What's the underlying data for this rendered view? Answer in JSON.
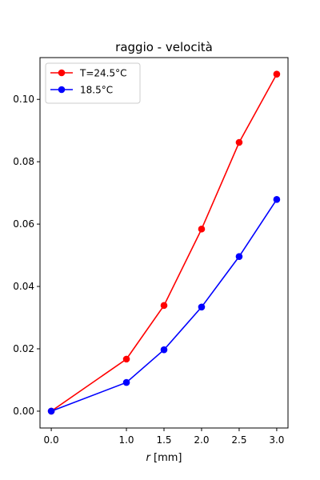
{
  "chart_data": {
    "type": "line",
    "title": "raggio - velocità",
    "xlabel_italic": "r",
    "xlabel_unit": " [mm]",
    "ylabel": "",
    "xlim": [
      -0.15,
      3.15
    ],
    "ylim": [
      -0.0054,
      0.1134
    ],
    "xticks": [
      0.0,
      1.0,
      1.5,
      2.0,
      2.5,
      3.0
    ],
    "xtick_labels": [
      "0.0",
      "1.0",
      "1.5",
      "2.0",
      "2.5",
      "3.0"
    ],
    "yticks": [
      0.0,
      0.02,
      0.04,
      0.06,
      0.08,
      0.1
    ],
    "ytick_labels": [
      "0.00",
      "0.02",
      "0.04",
      "0.06",
      "0.08",
      "0.10"
    ],
    "grid": false,
    "legend_position": "top-left",
    "series": [
      {
        "name": "T=24.5°C",
        "color": "#ff0000",
        "x": [
          0.0,
          1.0,
          1.5,
          2.0,
          2.5,
          3.0
        ],
        "values": [
          0.0,
          0.0167,
          0.0339,
          0.0584,
          0.0862,
          0.1081
        ]
      },
      {
        "name": "18.5°C",
        "color": "#0000ff",
        "x": [
          0.0,
          1.0,
          1.5,
          2.0,
          2.5,
          3.0
        ],
        "values": [
          0.0,
          0.0092,
          0.0197,
          0.0334,
          0.0496,
          0.0679
        ]
      }
    ]
  }
}
